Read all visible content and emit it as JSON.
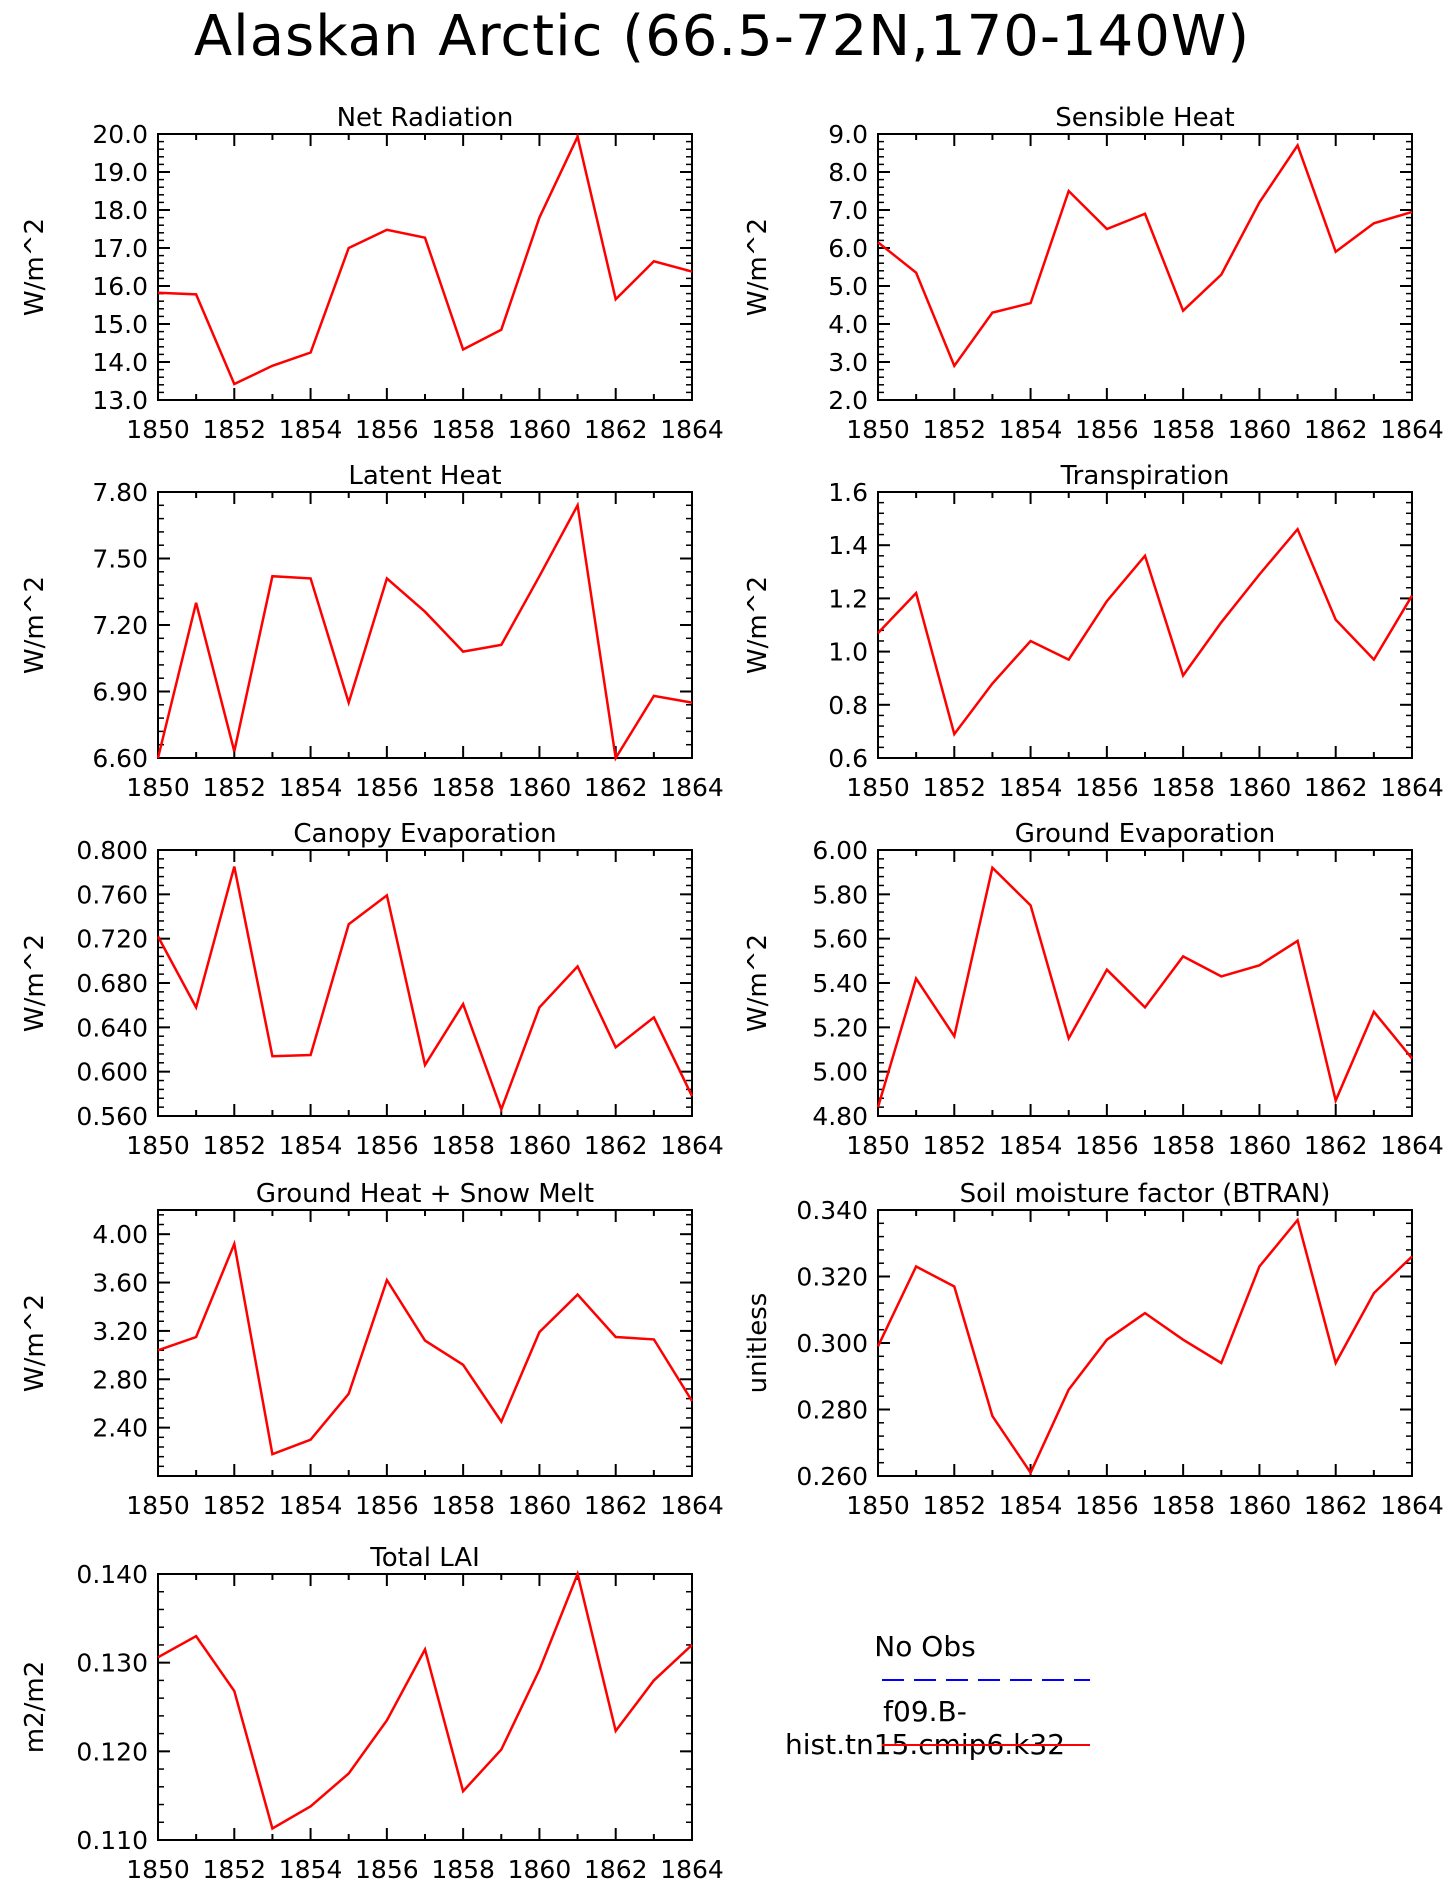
{
  "title": "Alaskan Arctic (66.5-72N,170-140W)",
  "colors": {
    "model_line": "#ff0000",
    "obs_line": "#0000ff",
    "axis": "#000000"
  },
  "legend": {
    "obs_label": "No Obs",
    "model_label": "f09.B-hist.tn15.cmip6.k32"
  },
  "chart_data": [
    {
      "type": "line",
      "title": "Net Radiation",
      "ylabel": "W/m^2",
      "x": [
        1850,
        1851,
        1852,
        1853,
        1854,
        1855,
        1856,
        1857,
        1858,
        1859,
        1860,
        1861,
        1862,
        1863,
        1864
      ],
      "xticks": [
        "1850",
        "1852",
        "1854",
        "1856",
        "1858",
        "1860",
        "1862",
        "1864"
      ],
      "ylim": [
        13.0,
        20.0
      ],
      "yticks": [
        "13.0",
        "14.0",
        "15.0",
        "16.0",
        "17.0",
        "18.0",
        "19.0",
        "20.0"
      ],
      "series": [
        {
          "values": [
            15.82,
            15.78,
            13.42,
            13.9,
            14.25,
            17.0,
            17.48,
            17.27,
            14.33,
            14.85,
            17.8,
            19.93,
            15.65,
            16.65,
            16.38
          ]
        }
      ]
    },
    {
      "type": "line",
      "title": "Sensible Heat",
      "ylabel": "W/m^2",
      "x": [
        1850,
        1851,
        1852,
        1853,
        1854,
        1855,
        1856,
        1857,
        1858,
        1859,
        1860,
        1861,
        1862,
        1863,
        1864
      ],
      "xticks": [
        "1850",
        "1852",
        "1854",
        "1856",
        "1858",
        "1860",
        "1862",
        "1864"
      ],
      "ylim": [
        2.0,
        9.0
      ],
      "yticks": [
        "2.0",
        "3.0",
        "4.0",
        "5.0",
        "6.0",
        "7.0",
        "8.0",
        "9.0"
      ],
      "series": [
        {
          "values": [
            6.15,
            5.35,
            2.9,
            4.3,
            4.55,
            7.5,
            6.5,
            6.9,
            4.35,
            5.3,
            7.2,
            8.7,
            5.9,
            6.65,
            6.95
          ]
        }
      ]
    },
    {
      "type": "line",
      "title": "Latent Heat",
      "ylabel": "W/m^2",
      "x": [
        1850,
        1851,
        1852,
        1853,
        1854,
        1855,
        1856,
        1857,
        1858,
        1859,
        1860,
        1861,
        1862,
        1863,
        1864
      ],
      "xticks": [
        "1850",
        "1852",
        "1854",
        "1856",
        "1858",
        "1860",
        "1862",
        "1864"
      ],
      "ylim": [
        6.6,
        7.8
      ],
      "yticks": [
        "6.60",
        "6.90",
        "7.20",
        "7.50",
        "7.80"
      ],
      "series": [
        {
          "values": [
            6.6,
            7.3,
            6.63,
            7.42,
            7.41,
            6.85,
            7.41,
            7.26,
            7.08,
            7.11,
            7.42,
            7.74,
            6.6,
            6.88,
            6.85
          ]
        }
      ]
    },
    {
      "type": "line",
      "title": "Transpiration",
      "ylabel": "W/m^2",
      "x": [
        1850,
        1851,
        1852,
        1853,
        1854,
        1855,
        1856,
        1857,
        1858,
        1859,
        1860,
        1861,
        1862,
        1863,
        1864
      ],
      "xticks": [
        "1850",
        "1852",
        "1854",
        "1856",
        "1858",
        "1860",
        "1862",
        "1864"
      ],
      "ylim": [
        0.6,
        1.6
      ],
      "yticks": [
        "0.6",
        "0.8",
        "1.0",
        "1.2",
        "1.4",
        "1.6"
      ],
      "series": [
        {
          "values": [
            1.07,
            1.22,
            0.69,
            0.88,
            1.04,
            0.97,
            1.19,
            1.36,
            0.91,
            1.11,
            1.29,
            1.46,
            1.12,
            0.97,
            1.21
          ]
        }
      ]
    },
    {
      "type": "line",
      "title": "Canopy Evaporation",
      "ylabel": "W/m^2",
      "x": [
        1850,
        1851,
        1852,
        1853,
        1854,
        1855,
        1856,
        1857,
        1858,
        1859,
        1860,
        1861,
        1862,
        1863,
        1864
      ],
      "xticks": [
        "1850",
        "1852",
        "1854",
        "1856",
        "1858",
        "1860",
        "1862",
        "1864"
      ],
      "ylim": [
        0.56,
        0.8
      ],
      "yticks": [
        "0.560",
        "0.600",
        "0.640",
        "0.680",
        "0.720",
        "0.760",
        "0.800"
      ],
      "series": [
        {
          "values": [
            0.722,
            0.658,
            0.785,
            0.614,
            0.615,
            0.733,
            0.759,
            0.606,
            0.661,
            0.566,
            0.658,
            0.695,
            0.622,
            0.649,
            0.578
          ]
        }
      ]
    },
    {
      "type": "line",
      "title": "Ground Evaporation",
      "ylabel": "W/m^2",
      "x": [
        1850,
        1851,
        1852,
        1853,
        1854,
        1855,
        1856,
        1857,
        1858,
        1859,
        1860,
        1861,
        1862,
        1863,
        1864
      ],
      "xticks": [
        "1850",
        "1852",
        "1854",
        "1856",
        "1858",
        "1860",
        "1862",
        "1864"
      ],
      "ylim": [
        4.8,
        6.0
      ],
      "yticks": [
        "4.80",
        "5.00",
        "5.20",
        "5.40",
        "5.60",
        "5.80",
        "6.00"
      ],
      "series": [
        {
          "values": [
            4.84,
            5.42,
            5.16,
            5.92,
            5.75,
            5.15,
            5.46,
            5.29,
            5.52,
            5.43,
            5.48,
            5.59,
            4.87,
            5.27,
            5.06
          ]
        }
      ]
    },
    {
      "type": "line",
      "title": "Ground Heat + Snow Melt",
      "ylabel": "W/m^2",
      "x": [
        1850,
        1851,
        1852,
        1853,
        1854,
        1855,
        1856,
        1857,
        1858,
        1859,
        1860,
        1861,
        1862,
        1863,
        1864
      ],
      "xticks": [
        "1850",
        "1852",
        "1854",
        "1856",
        "1858",
        "1860",
        "1862",
        "1864"
      ],
      "ylim": [
        2.0,
        4.2
      ],
      "yticks": [
        "2.40",
        "2.80",
        "3.20",
        "3.60",
        "4.00"
      ],
      "series": [
        {
          "values": [
            3.04,
            3.15,
            3.92,
            2.18,
            2.3,
            2.68,
            3.62,
            3.12,
            2.92,
            2.45,
            3.19,
            3.5,
            3.15,
            3.13,
            2.62
          ]
        }
      ]
    },
    {
      "type": "line",
      "title": "Soil moisture factor (BTRAN)",
      "ylabel": "unitless",
      "x": [
        1850,
        1851,
        1852,
        1853,
        1854,
        1855,
        1856,
        1857,
        1858,
        1859,
        1860,
        1861,
        1862,
        1863,
        1864
      ],
      "xticks": [
        "1850",
        "1852",
        "1854",
        "1856",
        "1858",
        "1860",
        "1862",
        "1864"
      ],
      "ylim": [
        0.26,
        0.34
      ],
      "yticks": [
        "0.260",
        "0.280",
        "0.300",
        "0.320",
        "0.340"
      ],
      "series": [
        {
          "values": [
            0.299,
            0.323,
            0.317,
            0.278,
            0.261,
            0.286,
            0.301,
            0.309,
            0.301,
            0.294,
            0.323,
            0.337,
            0.294,
            0.315,
            0.326
          ]
        }
      ]
    },
    {
      "type": "line",
      "title": "Total LAI",
      "ylabel": "m2/m2",
      "x": [
        1850,
        1851,
        1852,
        1853,
        1854,
        1855,
        1856,
        1857,
        1858,
        1859,
        1860,
        1861,
        1862,
        1863,
        1864
      ],
      "xticks": [
        "1850",
        "1852",
        "1854",
        "1856",
        "1858",
        "1860",
        "1862",
        "1864"
      ],
      "ylim": [
        0.11,
        0.14
      ],
      "yticks": [
        "0.110",
        "0.120",
        "0.130",
        "0.140"
      ],
      "series": [
        {
          "values": [
            0.1306,
            0.133,
            0.1268,
            0.1113,
            0.1138,
            0.1175,
            0.1235,
            0.1315,
            0.1155,
            0.1202,
            0.1292,
            0.14,
            0.1223,
            0.128,
            0.132
          ]
        }
      ]
    }
  ]
}
